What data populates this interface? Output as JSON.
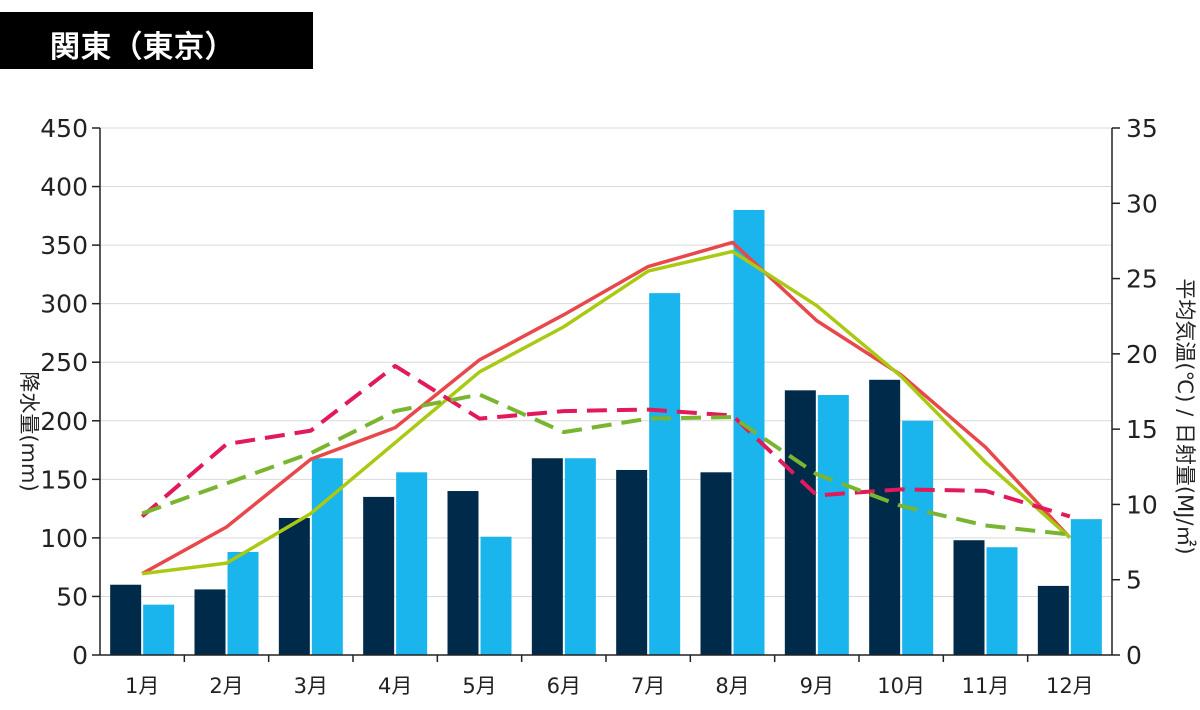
{
  "title": "関東（東京）",
  "chart_data": {
    "type": "bar",
    "categories": [
      "1月",
      "2月",
      "3月",
      "4月",
      "5月",
      "6月",
      "7月",
      "8月",
      "9月",
      "10月",
      "11月",
      "12月"
    ],
    "y_left": {
      "label": "降水量(mm)",
      "min": 0,
      "max": 450,
      "ticks": [
        0,
        50,
        100,
        150,
        200,
        250,
        300,
        350,
        400,
        450
      ]
    },
    "y_right": {
      "label": "平均気温(℃) / 日射量(MJ/㎡)",
      "min": 0,
      "max": 35,
      "ticks": [
        0,
        5,
        10,
        15,
        20,
        25,
        30,
        35
      ]
    },
    "grid": true,
    "bars": [
      {
        "color": "#002a4a",
        "axis": "left",
        "values": [
          60,
          56,
          117,
          135,
          140,
          168,
          158,
          156,
          226,
          235,
          98,
          59
        ]
      },
      {
        "color": "#19b5ec",
        "axis": "left",
        "values": [
          43,
          88,
          168,
          156,
          101,
          168,
          309,
          380,
          222,
          200,
          92,
          116
        ]
      }
    ],
    "lines": [
      {
        "color": "#e8474b",
        "axis": "right",
        "dashed": false,
        "values": [
          5.4,
          8.5,
          13.0,
          15.1,
          19.6,
          22.6,
          25.8,
          27.4,
          22.2,
          18.6,
          13.8,
          7.8
        ]
      },
      {
        "color": "#a9c913",
        "axis": "right",
        "dashed": false,
        "values": [
          5.4,
          6.1,
          9.4,
          14.1,
          18.8,
          21.8,
          25.5,
          26.8,
          23.2,
          18.5,
          12.8,
          7.8
        ]
      },
      {
        "color": "#e2195a",
        "axis": "right",
        "dashed": true,
        "values": [
          9.2,
          14.0,
          14.9,
          19.2,
          15.7,
          16.2,
          16.3,
          15.9,
          10.6,
          11.0,
          10.9,
          9.2
        ]
      },
      {
        "color": "#7ab531",
        "axis": "right",
        "dashed": true,
        "values": [
          9.4,
          11.4,
          13.4,
          16.2,
          17.3,
          14.8,
          15.7,
          15.8,
          12.0,
          9.9,
          8.6,
          8.0
        ]
      }
    ]
  }
}
